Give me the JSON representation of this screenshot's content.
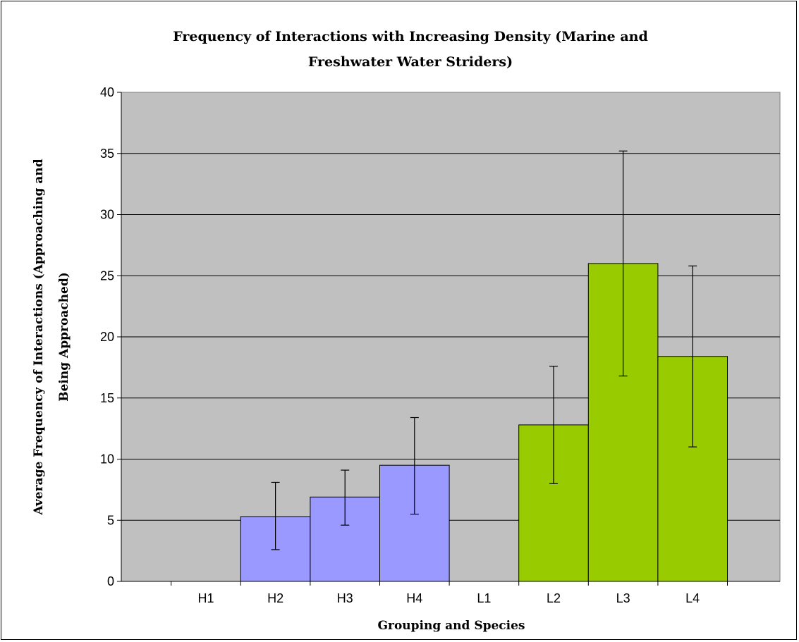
{
  "chart_data": {
    "type": "bar",
    "title_lines": [
      "Frequency of Interactions with Increasing Density (Marine and",
      "Freshwater Water Striders)"
    ],
    "xlabel": "Grouping and Species",
    "ylabel_lines": [
      "Average Frequency of Interactions (Approaching and",
      "Being Approached)"
    ],
    "categories": [
      "H1",
      "H2",
      "H3",
      "H4",
      "L1",
      "L2",
      "L3",
      "L4"
    ],
    "values": [
      0,
      5.3,
      6.9,
      9.5,
      0,
      12.8,
      26.0,
      18.4
    ],
    "error_low": [
      null,
      2.6,
      4.6,
      5.5,
      null,
      8.0,
      16.8,
      11.0
    ],
    "error_high": [
      null,
      8.1,
      9.1,
      13.4,
      null,
      17.6,
      35.2,
      25.8
    ],
    "bar_colors": [
      "#9999ff",
      "#9999ff",
      "#9999ff",
      "#9999ff",
      "#99cc00",
      "#99cc00",
      "#99cc00",
      "#99cc00"
    ],
    "ylim": [
      0,
      40
    ],
    "yticks": [
      0,
      5,
      10,
      15,
      20,
      25,
      30,
      35,
      40
    ],
    "grid": true,
    "plot_background": "#c0c0c0",
    "legend": "none"
  }
}
